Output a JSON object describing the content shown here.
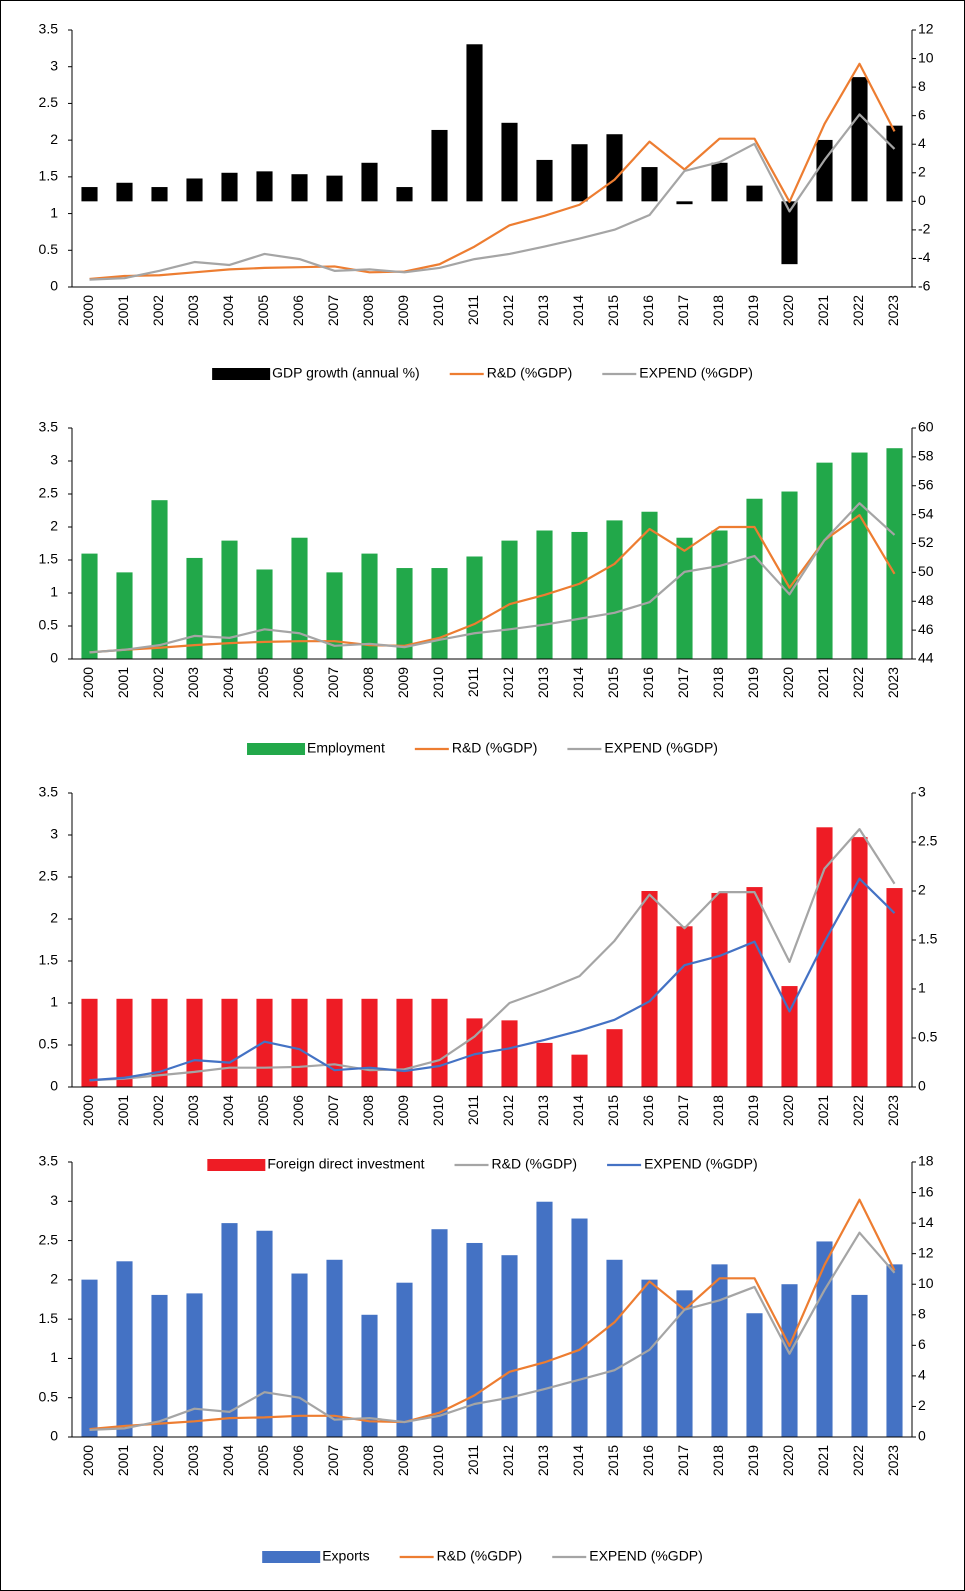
{
  "chart_data": [
    {
      "type": "combo",
      "categories": [
        "2000",
        "2001",
        "2002",
        "2003",
        "2004",
        "2005",
        "2006",
        "2007",
        "2008",
        "2009",
        "2010",
        "2011",
        "2012",
        "2013",
        "2014",
        "2015",
        "2016",
        "2017",
        "2018",
        "2019",
        "2020",
        "2021",
        "2022",
        "2023"
      ],
      "ylim": [
        0,
        3.5
      ],
      "yticks": [
        0,
        0.5,
        1,
        1.5,
        2,
        2.5,
        3,
        3.5
      ],
      "y2lim": [
        -6,
        12
      ],
      "y2ticks": [
        -6,
        -4,
        -2,
        0,
        2,
        4,
        6,
        8,
        10,
        12
      ],
      "series": [
        {
          "name": "GDP growth (annual %)",
          "type": "bar",
          "axis": "y2",
          "color": "#000000",
          "values": [
            1.0,
            1.3,
            1.0,
            1.6,
            2.0,
            2.1,
            1.9,
            1.8,
            2.7,
            1.0,
            5.0,
            11.0,
            5.5,
            2.9,
            4.0,
            4.7,
            2.4,
            -0.2,
            2.7,
            1.1,
            -4.4,
            4.3,
            8.7,
            5.3
          ]
        },
        {
          "name": "R&D (%GDP)",
          "type": "line",
          "axis": "y",
          "color": "#ed7d31",
          "values": [
            0.11,
            0.15,
            0.16,
            0.2,
            0.24,
            0.26,
            0.27,
            0.28,
            0.2,
            0.21,
            0.31,
            0.55,
            0.84,
            0.97,
            1.12,
            1.46,
            1.98,
            1.6,
            2.02,
            2.02,
            1.16,
            2.22,
            3.04,
            2.12
          ]
        },
        {
          "name": "EXPEND (%GDP)",
          "type": "line",
          "axis": "y",
          "color": "#a5a5a5",
          "values": [
            0.1,
            0.12,
            0.22,
            0.34,
            0.3,
            0.45,
            0.38,
            0.22,
            0.24,
            0.2,
            0.26,
            0.38,
            0.45,
            0.55,
            0.66,
            0.78,
            0.98,
            1.58,
            1.7,
            1.95,
            1.03,
            1.73,
            2.35,
            1.88
          ]
        }
      ]
    },
    {
      "type": "combo",
      "categories": [
        "2000",
        "2001",
        "2002",
        "2003",
        "2004",
        "2005",
        "2006",
        "2007",
        "2008",
        "2009",
        "2010",
        "2011",
        "2012",
        "2013",
        "2014",
        "2015",
        "2016",
        "2017",
        "2018",
        "2019",
        "2020",
        "2021",
        "2022",
        "2023"
      ],
      "ylim": [
        0,
        3.5
      ],
      "yticks": [
        0,
        0.5,
        1,
        1.5,
        2,
        2.5,
        3,
        3.5
      ],
      "y2lim": [
        44,
        60
      ],
      "y2ticks": [
        44,
        46,
        48,
        50,
        52,
        54,
        56,
        58,
        60
      ],
      "series": [
        {
          "name": "Employment",
          "type": "bar",
          "axis": "y2",
          "color": "#22a84a",
          "values": [
            51.3,
            50.0,
            55.0,
            51.0,
            52.2,
            50.2,
            52.4,
            50.0,
            51.3,
            50.3,
            50.3,
            51.1,
            52.2,
            52.9,
            52.8,
            53.6,
            54.2,
            52.4,
            52.9,
            55.1,
            55.6,
            57.6,
            58.3,
            58.6
          ]
        },
        {
          "name": "R&D (%GDP)",
          "type": "line",
          "axis": "y",
          "color": "#ed7d31",
          "values": [
            0.1,
            0.14,
            0.17,
            0.21,
            0.24,
            0.26,
            0.27,
            0.27,
            0.21,
            0.2,
            0.32,
            0.53,
            0.83,
            0.97,
            1.14,
            1.44,
            1.97,
            1.64,
            2.0,
            2.0,
            1.08,
            1.8,
            2.18,
            1.29
          ]
        },
        {
          "name": "EXPEND (%GDP)",
          "type": "line",
          "axis": "y",
          "color": "#a5a5a5",
          "values": [
            0.1,
            0.14,
            0.21,
            0.35,
            0.32,
            0.45,
            0.39,
            0.2,
            0.23,
            0.18,
            0.29,
            0.39,
            0.45,
            0.52,
            0.61,
            0.7,
            0.86,
            1.32,
            1.41,
            1.56,
            0.98,
            1.8,
            2.36,
            1.88
          ]
        }
      ]
    },
    {
      "type": "combo",
      "categories": [
        "2000",
        "2001",
        "2002",
        "2003",
        "2004",
        "2005",
        "2006",
        "2007",
        "2008",
        "2009",
        "2010",
        "2011",
        "2012",
        "2013",
        "2014",
        "2015",
        "2016",
        "2017",
        "2018",
        "2019",
        "2020",
        "2021",
        "2022",
        "2023"
      ],
      "ylim": [
        0,
        3.5
      ],
      "yticks": [
        0,
        0.5,
        1,
        1.5,
        2,
        2.5,
        3,
        3.5
      ],
      "y2lim": [
        0,
        3
      ],
      "y2ticks": [
        0,
        0.5,
        1,
        1.5,
        2,
        2.5,
        3
      ],
      "series": [
        {
          "name": "Foreign direct investment",
          "type": "bar",
          "axis": "y2",
          "color": "#ee1c25",
          "values": [
            0.9,
            0.9,
            0.9,
            0.9,
            0.9,
            0.9,
            0.9,
            0.9,
            0.9,
            0.9,
            0.9,
            0.7,
            0.68,
            0.45,
            0.33,
            0.59,
            2.0,
            1.64,
            1.98,
            2.04,
            1.03,
            2.65,
            2.55,
            2.03
          ]
        },
        {
          "name": "R&D (%GDP)",
          "type": "line",
          "axis": "y",
          "color": "#a5a5a5",
          "values": [
            0.08,
            0.1,
            0.14,
            0.18,
            0.23,
            0.23,
            0.24,
            0.27,
            0.2,
            0.21,
            0.32,
            0.6,
            1.0,
            1.15,
            1.32,
            1.74,
            2.29,
            1.89,
            2.32,
            2.32,
            1.49,
            2.6,
            3.07,
            2.42
          ]
        },
        {
          "name": "EXPEND (%GDP)",
          "type": "line",
          "axis": "y",
          "color": "#4472c4",
          "values": [
            0.08,
            0.11,
            0.18,
            0.32,
            0.29,
            0.54,
            0.45,
            0.2,
            0.23,
            0.19,
            0.25,
            0.39,
            0.46,
            0.56,
            0.67,
            0.8,
            1.02,
            1.45,
            1.56,
            1.73,
            0.9,
            1.73,
            2.48,
            2.07
          ]
        }
      ]
    },
    {
      "type": "combo",
      "categories": [
        "2000",
        "2001",
        "2002",
        "2003",
        "2004",
        "2005",
        "2006",
        "2007",
        "2008",
        "2009",
        "2010",
        "2011",
        "2012",
        "2013",
        "2014",
        "2015",
        "2016",
        "2017",
        "2018",
        "2019",
        "2020",
        "2021",
        "2022",
        "2023"
      ],
      "ylim": [
        0,
        3.5
      ],
      "yticks": [
        0,
        0.5,
        1,
        1.5,
        2,
        2.5,
        3,
        3.5
      ],
      "y2lim": [
        0,
        18
      ],
      "y2ticks": [
        0,
        2,
        4,
        6,
        8,
        10,
        12,
        14,
        16,
        18
      ],
      "series": [
        {
          "name": "Exports",
          "type": "bar",
          "axis": "y2",
          "color": "#4472c4",
          "values": [
            10.3,
            11.5,
            9.3,
            9.4,
            14.0,
            13.5,
            10.7,
            11.6,
            8.0,
            10.1,
            13.6,
            12.7,
            11.9,
            15.4,
            14.3,
            11.6,
            10.3,
            9.6,
            11.3,
            8.1,
            10.0,
            12.8,
            9.3,
            11.3
          ]
        },
        {
          "name": "R&D (%GDP)",
          "type": "line",
          "axis": "y",
          "color": "#ed7d31",
          "values": [
            0.1,
            0.14,
            0.17,
            0.2,
            0.24,
            0.25,
            0.27,
            0.27,
            0.2,
            0.19,
            0.31,
            0.53,
            0.83,
            0.95,
            1.11,
            1.46,
            1.98,
            1.62,
            2.02,
            2.02,
            1.16,
            2.19,
            3.02,
            2.12
          ]
        },
        {
          "name": "EXPEND (%GDP)",
          "type": "line",
          "axis": "y",
          "color": "#a5a5a5",
          "values": [
            0.09,
            0.11,
            0.2,
            0.36,
            0.32,
            0.57,
            0.5,
            0.22,
            0.24,
            0.19,
            0.27,
            0.42,
            0.5,
            0.61,
            0.73,
            0.85,
            1.11,
            1.62,
            1.74,
            1.91,
            1.06,
            1.87,
            2.6,
            2.09
          ]
        }
      ]
    }
  ]
}
